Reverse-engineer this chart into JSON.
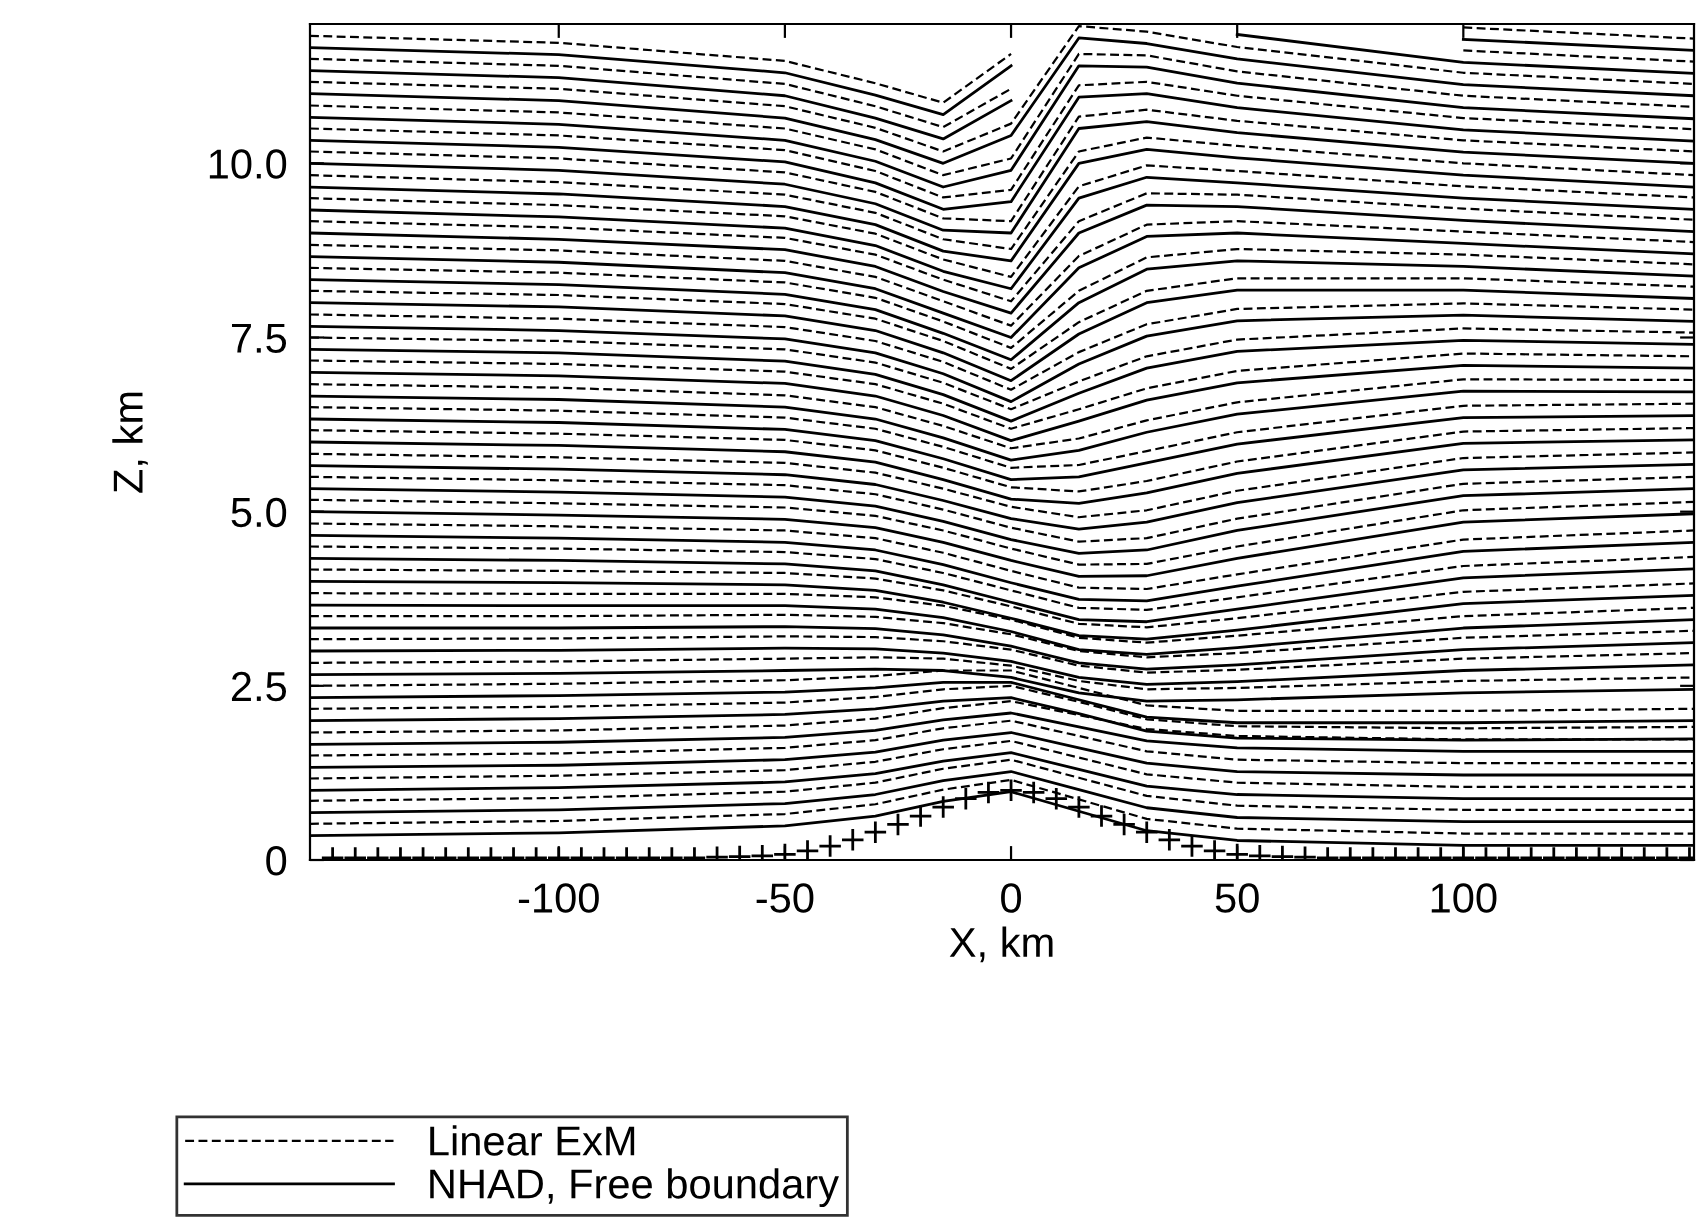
{
  "chart_data": {
    "type": "line",
    "xlabel": "X, km",
    "ylabel": "Z, km",
    "xlim": [
      -155,
      151
    ],
    "ylim": [
      0,
      12
    ],
    "xticks": [
      -100,
      -50,
      0,
      50,
      100
    ],
    "yticks": [
      0,
      2.5,
      {
        "value": 5,
        "label": "5.0"
      },
      7.5,
      {
        "value": 10,
        "label": "10.0"
      }
    ],
    "grid": false,
    "legend": "bottom left",
    "marker": "none",
    "x": [
      -155,
      -100,
      -50,
      -30,
      -15,
      0,
      15,
      30,
      50,
      100,
      151
    ],
    "series": [
      {
        "name": "Linear ExM",
        "color": "#000000",
        "line_style": "dashed",
        "values": [
          0.52,
          0.56,
          0.66,
          0.8,
          1.01,
          1.15,
          0.87,
          0.59,
          0.45,
          0.38,
          0.38
        ]
      },
      {
        "name": "NHAD, Free boundary",
        "color": "#000000",
        "line_style": "solid",
        "values": [
          0.35,
          0.39,
          0.49,
          0.63,
          0.84,
          0.98,
          0.7,
          0.42,
          0.28,
          0.21,
          0.21
        ]
      },
      {
        "color": "#000000",
        "line_style": "solid",
        "values": [
          0.68,
          0.72,
          0.81,
          0.94,
          1.14,
          1.27,
          1.01,
          0.75,
          0.61,
          0.55,
          0.55
        ]
      },
      {
        "color": "#000000",
        "line_style": "solid",
        "values": [
          1.0,
          1.04,
          1.12,
          1.24,
          1.42,
          1.54,
          1.3,
          1.06,
          0.94,
          0.88,
          0.88
        ]
      },
      {
        "color": "#000000",
        "line_style": "solid",
        "values": [
          1.33,
          1.36,
          1.44,
          1.55,
          1.72,
          1.83,
          1.61,
          1.39,
          1.27,
          1.22,
          1.22
        ]
      },
      {
        "color": "#000000",
        "line_style": "solid",
        "values": [
          1.66,
          1.69,
          1.76,
          1.86,
          2.01,
          2.11,
          1.91,
          1.71,
          1.61,
          1.56,
          1.56
        ]
      },
      {
        "color": "#000000",
        "line_style": "solid",
        "values": [
          2.0,
          2.03,
          2.09,
          2.17,
          2.28,
          2.33,
          2.1,
          1.85,
          1.75,
          1.72,
          1.74
        ]
      },
      {
        "color": "#000000",
        "line_style": "solid",
        "values": [
          2.33,
          2.36,
          2.41,
          2.47,
          2.55,
          2.55,
          2.3,
          2.05,
          1.97,
          1.97,
          2.0
        ]
      },
      {
        "color": "#000000",
        "line_style": "solid",
        "values": [
          2.66,
          2.68,
          2.72,
          2.74,
          2.72,
          2.62,
          2.4,
          2.28,
          2.3,
          2.4,
          2.45
        ]
      },
      {
        "color": "#000000",
        "line_style": "solid",
        "values": [
          3.0,
          3.01,
          3.04,
          3.03,
          2.97,
          2.85,
          2.62,
          2.52,
          2.56,
          2.72,
          2.8
        ]
      },
      {
        "color": "#000000",
        "line_style": "solid",
        "values": [
          3.33,
          3.33,
          3.35,
          3.32,
          3.23,
          3.07,
          2.83,
          2.74,
          2.8,
          3.02,
          3.12
        ]
      },
      {
        "color": "#000000",
        "line_style": "solid",
        "values": [
          3.66,
          3.65,
          3.65,
          3.6,
          3.48,
          3.28,
          3.02,
          2.95,
          3.05,
          3.33,
          3.45
        ]
      },
      {
        "color": "#000000",
        "line_style": "solid",
        "values": [
          4.0,
          3.98,
          3.95,
          3.87,
          3.7,
          3.47,
          3.22,
          3.17,
          3.3,
          3.68,
          3.8
        ]
      },
      {
        "color": "#000000",
        "line_style": "solid",
        "values": [
          4.33,
          4.3,
          4.25,
          4.15,
          3.95,
          3.7,
          3.45,
          3.42,
          3.6,
          4.05,
          4.18
        ]
      },
      {
        "color": "#000000",
        "line_style": "solid",
        "values": [
          4.66,
          4.62,
          4.56,
          4.45,
          4.24,
          3.98,
          3.74,
          3.72,
          3.93,
          4.43,
          4.56
        ]
      },
      {
        "color": "#000000",
        "line_style": "solid",
        "values": [
          5.0,
          4.95,
          4.89,
          4.77,
          4.56,
          4.3,
          4.07,
          4.08,
          4.33,
          4.85,
          4.97
        ]
      },
      {
        "color": "#000000",
        "line_style": "solid",
        "values": [
          5.33,
          5.28,
          5.21,
          5.08,
          4.86,
          4.6,
          4.4,
          4.45,
          4.73,
          5.23,
          5.33
        ]
      },
      {
        "color": "#000000",
        "line_style": "solid",
        "values": [
          5.66,
          5.61,
          5.53,
          5.39,
          5.16,
          4.9,
          4.75,
          4.85,
          5.13,
          5.6,
          5.68
        ]
      },
      {
        "color": "#000000",
        "line_style": "solid",
        "values": [
          6.0,
          5.95,
          5.86,
          5.71,
          5.46,
          5.18,
          5.12,
          5.27,
          5.55,
          5.98,
          6.03
        ]
      },
      {
        "color": "#000000",
        "line_style": "solid",
        "values": [
          6.33,
          6.28,
          6.18,
          6.02,
          5.76,
          5.46,
          5.5,
          5.7,
          5.97,
          6.35,
          6.38
        ]
      },
      {
        "color": "#000000",
        "line_style": "solid",
        "values": [
          6.66,
          6.61,
          6.5,
          6.33,
          6.06,
          5.74,
          5.88,
          6.14,
          6.4,
          6.73,
          6.72
        ]
      },
      {
        "color": "#000000",
        "line_style": "solid",
        "values": [
          7.0,
          6.95,
          6.84,
          6.66,
          6.38,
          6.02,
          6.3,
          6.6,
          6.85,
          7.1,
          7.06
        ]
      },
      {
        "color": "#000000",
        "line_style": "solid",
        "values": [
          7.33,
          7.28,
          7.16,
          6.97,
          6.68,
          6.3,
          6.7,
          7.06,
          7.3,
          7.46,
          7.4
        ]
      },
      {
        "color": "#000000",
        "line_style": "solid",
        "values": [
          7.66,
          7.6,
          7.48,
          7.28,
          6.98,
          6.58,
          7.12,
          7.52,
          7.74,
          7.82,
          7.73
        ]
      },
      {
        "color": "#000000",
        "line_style": "solid",
        "values": [
          8.0,
          7.94,
          7.81,
          7.6,
          7.28,
          6.88,
          7.55,
          8.0,
          8.18,
          8.18,
          8.06
        ]
      },
      {
        "color": "#000000",
        "line_style": "solid",
        "values": [
          8.33,
          8.26,
          8.12,
          7.9,
          7.56,
          7.18,
          8.0,
          8.48,
          8.6,
          8.52,
          8.38
        ]
      },
      {
        "color": "#000000",
        "line_style": "solid",
        "values": [
          8.66,
          8.58,
          8.43,
          8.2,
          7.85,
          7.5,
          8.5,
          8.95,
          9.0,
          8.85,
          8.7
        ]
      },
      {
        "color": "#000000",
        "line_style": "solid",
        "values": [
          9.0,
          8.91,
          8.76,
          8.52,
          8.16,
          7.85,
          9.0,
          9.4,
          9.38,
          9.18,
          9.02
        ]
      },
      {
        "color": "#000000",
        "line_style": "solid",
        "values": [
          9.33,
          9.23,
          9.07,
          8.82,
          8.45,
          8.2,
          9.5,
          9.8,
          9.72,
          9.5,
          9.34
        ]
      },
      {
        "color": "#000000",
        "line_style": "solid",
        "values": [
          9.66,
          9.56,
          9.38,
          9.12,
          8.74,
          8.6,
          10.0,
          10.2,
          10.08,
          9.83,
          9.66
        ]
      },
      {
        "color": "#000000",
        "line_style": "solid",
        "values": [
          10.0,
          9.9,
          9.7,
          9.42,
          9.04,
          9.0,
          10.5,
          10.6,
          10.44,
          10.16,
          10.0
        ]
      },
      {
        "color": "#000000",
        "line_style": "solid",
        "values": [
          10.33,
          10.23,
          10.02,
          9.72,
          9.34,
          9.45,
          10.95,
          11.0,
          10.8,
          10.48,
          10.32
        ]
      },
      {
        "color": "#000000",
        "line_style": "solid",
        "values": [
          10.66,
          10.56,
          10.33,
          10.03,
          9.66,
          9.9,
          11.4,
          11.38,
          11.15,
          10.8,
          10.64
        ]
      },
      {
        "color": "#000000",
        "line_style": "solid",
        "values": [
          11.0,
          10.9,
          10.65,
          10.34,
          10.0,
          10.4,
          11.8,
          11.72,
          11.5,
          11.13,
          10.97
        ]
      },
      {
        "color": "#000000",
        "line_style": "solid",
        "values": [
          11.33,
          11.23,
          10.97,
          10.65,
          10.35,
          10.9,
          null,
          null,
          11.85,
          11.45,
          11.29
        ]
      },
      {
        "color": "#000000",
        "line_style": "solid",
        "values": [
          11.66,
          11.56,
          11.3,
          10.98,
          10.7,
          11.4,
          null,
          null,
          null,
          11.78,
          11.62
        ]
      },
      {
        "color": "#000000",
        "line_style": "dashed",
        "values": [
          0.85,
          0.89,
          0.98,
          1.11,
          1.31,
          1.44,
          1.18,
          0.92,
          0.78,
          0.72,
          0.72
        ]
      },
      {
        "color": "#000000",
        "line_style": "dashed",
        "values": [
          1.17,
          1.21,
          1.29,
          1.41,
          1.59,
          1.71,
          1.47,
          1.23,
          1.11,
          1.05,
          1.05
        ]
      },
      {
        "color": "#000000",
        "line_style": "dashed",
        "values": [
          1.5,
          1.53,
          1.61,
          1.72,
          1.89,
          2.0,
          1.78,
          1.56,
          1.44,
          1.39,
          1.39
        ]
      },
      {
        "color": "#000000",
        "line_style": "dashed",
        "values": [
          1.83,
          1.86,
          1.93,
          2.03,
          2.18,
          2.28,
          2.08,
          1.88,
          1.78,
          1.73,
          1.73
        ]
      },
      {
        "color": "#000000",
        "line_style": "dashed",
        "values": [
          2.17,
          2.2,
          2.26,
          2.34,
          2.45,
          2.5,
          2.27,
          2.02,
          1.92,
          1.89,
          1.91
        ]
      },
      {
        "color": "#000000",
        "line_style": "dashed",
        "values": [
          2.5,
          2.53,
          2.58,
          2.64,
          2.72,
          2.72,
          2.47,
          2.22,
          2.14,
          2.14,
          2.17
        ]
      },
      {
        "color": "#000000",
        "line_style": "dashed",
        "values": [
          2.83,
          2.85,
          2.89,
          2.91,
          2.89,
          2.79,
          2.57,
          2.45,
          2.47,
          2.57,
          2.62
        ]
      },
      {
        "color": "#000000",
        "line_style": "dashed",
        "values": [
          3.17,
          3.18,
          3.21,
          3.2,
          3.14,
          3.02,
          2.79,
          2.69,
          2.73,
          2.89,
          2.97
        ]
      },
      {
        "color": "#000000",
        "line_style": "dashed",
        "values": [
          3.5,
          3.5,
          3.52,
          3.49,
          3.4,
          3.24,
          3.0,
          2.91,
          2.97,
          3.19,
          3.29
        ]
      },
      {
        "color": "#000000",
        "line_style": "dashed",
        "values": [
          3.83,
          3.82,
          3.82,
          3.77,
          3.65,
          3.45,
          3.19,
          3.12,
          3.22,
          3.5,
          3.62
        ]
      },
      {
        "color": "#000000",
        "line_style": "dashed",
        "values": [
          4.17,
          4.15,
          4.12,
          4.04,
          3.87,
          3.64,
          3.39,
          3.34,
          3.47,
          3.85,
          3.97
        ]
      },
      {
        "color": "#000000",
        "line_style": "dashed",
        "values": [
          4.5,
          4.47,
          4.42,
          4.32,
          4.12,
          3.87,
          3.62,
          3.59,
          3.77,
          4.22,
          4.35
        ]
      },
      {
        "color": "#000000",
        "line_style": "dashed",
        "values": [
          4.83,
          4.79,
          4.73,
          4.62,
          4.41,
          4.15,
          3.91,
          3.89,
          4.1,
          4.6,
          4.73
        ]
      },
      {
        "color": "#000000",
        "line_style": "dashed",
        "values": [
          5.17,
          5.12,
          5.06,
          4.94,
          4.73,
          4.47,
          4.24,
          4.25,
          4.5,
          5.02,
          5.14
        ]
      },
      {
        "color": "#000000",
        "line_style": "dashed",
        "values": [
          5.5,
          5.45,
          5.38,
          5.25,
          5.03,
          4.77,
          4.57,
          4.62,
          4.9,
          5.4,
          5.5
        ]
      },
      {
        "color": "#000000",
        "line_style": "dashed",
        "values": [
          5.83,
          5.78,
          5.7,
          5.56,
          5.33,
          5.07,
          4.92,
          5.02,
          5.3,
          5.77,
          5.85
        ]
      },
      {
        "color": "#000000",
        "line_style": "dashed",
        "values": [
          6.17,
          6.12,
          6.03,
          5.88,
          5.63,
          5.35,
          5.29,
          5.44,
          5.72,
          6.15,
          6.2
        ]
      },
      {
        "color": "#000000",
        "line_style": "dashed",
        "values": [
          6.5,
          6.45,
          6.35,
          6.19,
          5.93,
          5.63,
          5.67,
          5.87,
          6.14,
          6.52,
          6.55
        ]
      },
      {
        "color": "#000000",
        "line_style": "dashed",
        "values": [
          6.83,
          6.78,
          6.67,
          6.5,
          6.23,
          5.91,
          6.05,
          6.31,
          6.57,
          6.9,
          6.89
        ]
      },
      {
        "color": "#000000",
        "line_style": "dashed",
        "values": [
          7.17,
          7.12,
          7.01,
          6.83,
          6.55,
          6.19,
          6.47,
          6.77,
          7.02,
          7.27,
          7.23
        ]
      },
      {
        "color": "#000000",
        "line_style": "dashed",
        "values": [
          7.5,
          7.45,
          7.33,
          7.14,
          6.85,
          6.47,
          6.87,
          7.23,
          7.47,
          7.63,
          7.57
        ]
      },
      {
        "color": "#000000",
        "line_style": "dashed",
        "values": [
          7.83,
          7.77,
          7.65,
          7.45,
          7.15,
          6.75,
          7.29,
          7.69,
          7.91,
          7.99,
          7.9
        ]
      },
      {
        "color": "#000000",
        "line_style": "dashed",
        "values": [
          8.17,
          8.11,
          7.98,
          7.77,
          7.45,
          7.05,
          7.72,
          8.17,
          8.35,
          8.35,
          8.23
        ]
      },
      {
        "color": "#000000",
        "line_style": "dashed",
        "values": [
          8.5,
          8.43,
          8.29,
          8.07,
          7.73,
          7.35,
          8.17,
          8.65,
          8.77,
          8.69,
          8.55
        ]
      },
      {
        "color": "#000000",
        "line_style": "dashed",
        "values": [
          8.83,
          8.75,
          8.6,
          8.37,
          8.02,
          7.67,
          8.67,
          9.12,
          9.17,
          9.02,
          8.87
        ]
      },
      {
        "color": "#000000",
        "line_style": "dashed",
        "values": [
          9.17,
          9.08,
          8.93,
          8.69,
          8.33,
          8.02,
          9.17,
          9.57,
          9.55,
          9.35,
          9.19
        ]
      },
      {
        "color": "#000000",
        "line_style": "dashed",
        "values": [
          9.5,
          9.4,
          9.24,
          8.99,
          8.62,
          8.37,
          9.67,
          9.97,
          9.89,
          9.67,
          9.51
        ]
      },
      {
        "color": "#000000",
        "line_style": "dashed",
        "values": [
          9.83,
          9.73,
          9.55,
          9.29,
          8.91,
          8.77,
          10.17,
          10.37,
          10.25,
          10.0,
          9.83
        ]
      },
      {
        "color": "#000000",
        "line_style": "dashed",
        "values": [
          10.17,
          10.07,
          9.87,
          9.59,
          9.21,
          9.17,
          10.67,
          10.77,
          10.61,
          10.33,
          10.17
        ]
      },
      {
        "color": "#000000",
        "line_style": "dashed",
        "values": [
          10.5,
          10.4,
          10.19,
          9.89,
          9.51,
          9.62,
          11.12,
          11.17,
          10.97,
          10.65,
          10.49
        ]
      },
      {
        "color": "#000000",
        "line_style": "dashed",
        "values": [
          10.83,
          10.73,
          10.5,
          10.2,
          9.83,
          10.07,
          11.57,
          11.55,
          11.32,
          10.97,
          10.81
        ]
      },
      {
        "color": "#000000",
        "line_style": "dashed",
        "values": [
          11.17,
          11.07,
          10.82,
          10.51,
          10.17,
          10.57,
          11.97,
          11.89,
          11.67,
          11.3,
          11.14
        ]
      },
      {
        "color": "#000000",
        "line_style": "dashed",
        "values": [
          11.5,
          11.4,
          11.14,
          10.82,
          10.52,
          11.07,
          null,
          null,
          null,
          11.62,
          11.46
        ]
      },
      {
        "color": "#000000",
        "line_style": "dashed",
        "values": [
          11.83,
          11.73,
          11.47,
          11.15,
          10.87,
          11.57,
          null,
          null,
          null,
          11.95,
          11.79
        ]
      },
      {
        "type": "scatter",
        "marker": "cross",
        "color": "#000000",
        "x": [
          -150,
          -145,
          -140,
          -135,
          -130,
          -125,
          -120,
          -115,
          -110,
          -105,
          -100,
          -95,
          -90,
          -85,
          -80,
          -75,
          -70,
          -65,
          -60,
          -55,
          -50,
          -45,
          -40,
          -35,
          -30,
          -25,
          -20,
          -15,
          -10,
          -5,
          0,
          5,
          10,
          15,
          20,
          25,
          30,
          35,
          40,
          45,
          50,
          55,
          60,
          65,
          70,
          75,
          80,
          85,
          90,
          95,
          100,
          105,
          110,
          115,
          120,
          125,
          130,
          135,
          140,
          145,
          150
        ],
        "values": [
          0.03,
          0.03,
          0.03,
          0.03,
          0.03,
          0.03,
          0.03,
          0.03,
          0.03,
          0.03,
          0.03,
          0.03,
          0.03,
          0.03,
          0.03,
          0.03,
          0.03,
          0.04,
          0.05,
          0.06,
          0.08,
          0.13,
          0.2,
          0.29,
          0.4,
          0.51,
          0.63,
          0.76,
          0.88,
          0.97,
          1.0,
          0.97,
          0.88,
          0.76,
          0.63,
          0.51,
          0.4,
          0.29,
          0.2,
          0.13,
          0.08,
          0.06,
          0.05,
          0.04,
          0.03,
          0.03,
          0.03,
          0.03,
          0.03,
          0.03,
          0.03,
          0.03,
          0.03,
          0.03,
          0.03,
          0.03,
          0.03,
          0.03,
          0.03,
          0.03,
          0.03
        ]
      }
    ]
  }
}
